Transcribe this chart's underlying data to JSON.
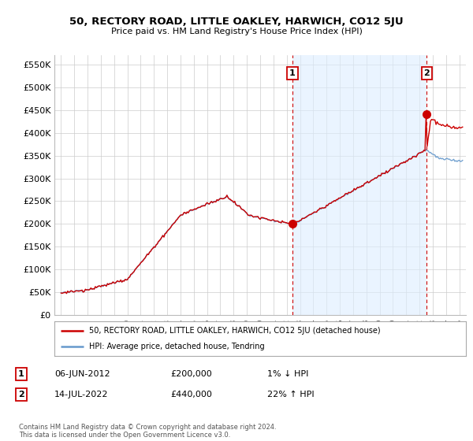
{
  "title": "50, RECTORY ROAD, LITTLE OAKLEY, HARWICH, CO12 5JU",
  "subtitle": "Price paid vs. HM Land Registry's House Price Index (HPI)",
  "ylabel_ticks": [
    "£0",
    "£50K",
    "£100K",
    "£150K",
    "£200K",
    "£250K",
    "£300K",
    "£350K",
    "£400K",
    "£450K",
    "£500K",
    "£550K"
  ],
  "ytick_vals": [
    0,
    50000,
    100000,
    150000,
    200000,
    250000,
    300000,
    350000,
    400000,
    450000,
    500000,
    550000
  ],
  "ylim": [
    0,
    570000
  ],
  "xlim_start": 1994.5,
  "xlim_end": 2025.5,
  "xtick_years": [
    1995,
    1996,
    1997,
    1998,
    1999,
    2000,
    2001,
    2002,
    2003,
    2004,
    2005,
    2006,
    2007,
    2008,
    2009,
    2010,
    2011,
    2012,
    2013,
    2014,
    2015,
    2016,
    2017,
    2018,
    2019,
    2020,
    2021,
    2022,
    2023,
    2024,
    2025
  ],
  "red_line_color": "#cc0000",
  "blue_line_color": "#6699cc",
  "shade_color": "#ddeeff",
  "sale1_year": 2012.43,
  "sale1_price": 200000,
  "sale2_year": 2022.54,
  "sale2_price": 440000,
  "legend_label_red": "50, RECTORY ROAD, LITTLE OAKLEY, HARWICH, CO12 5JU (detached house)",
  "legend_label_blue": "HPI: Average price, detached house, Tendring",
  "note1_label": "1",
  "note1_date": "06-JUN-2012",
  "note1_price": "£200,000",
  "note1_hpi": "1% ↓ HPI",
  "note2_label": "2",
  "note2_date": "14-JUL-2022",
  "note2_price": "£440,000",
  "note2_hpi": "22% ↑ HPI",
  "footer": "Contains HM Land Registry data © Crown copyright and database right 2024.\nThis data is licensed under the Open Government Licence v3.0.",
  "background_color": "#ffffff",
  "grid_color": "#cccccc"
}
